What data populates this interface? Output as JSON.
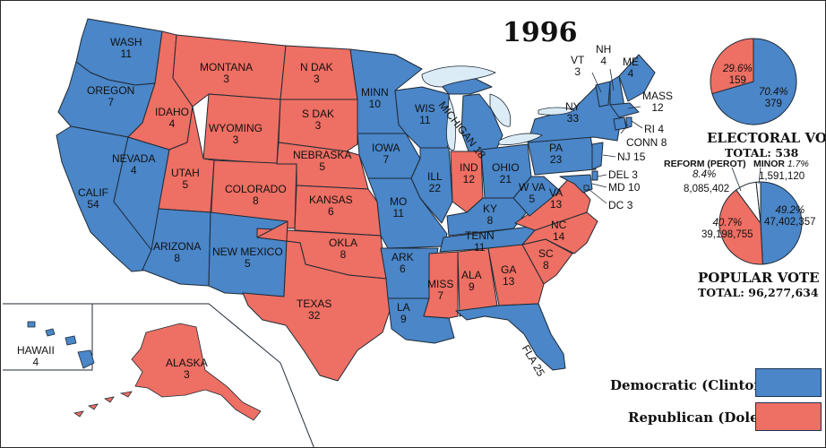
{
  "title": "1996",
  "colors": {
    "democratic": "#4a86c8",
    "republican": "#ee6f63",
    "lakes": "#dcecf7",
    "border": "#1f2a36",
    "reform": "#ffffff",
    "minor": "#ffffff"
  },
  "states": {
    "WA": {
      "name": "WASH",
      "ev": "11",
      "party": "D"
    },
    "OR": {
      "name": "OREGON",
      "ev": "7",
      "party": "D"
    },
    "CA": {
      "name": "CALIF",
      "ev": "54",
      "party": "D"
    },
    "NV": {
      "name": "NEVADA",
      "ev": "4",
      "party": "D"
    },
    "ID": {
      "name": "IDAHO",
      "ev": "4",
      "party": "R"
    },
    "MT": {
      "name": "MONTANA",
      "ev": "3",
      "party": "R"
    },
    "WY": {
      "name": "WYOMING",
      "ev": "3",
      "party": "R"
    },
    "UT": {
      "name": "UTAH",
      "ev": "5",
      "party": "R"
    },
    "CO": {
      "name": "COLORADO",
      "ev": "8",
      "party": "R"
    },
    "AZ": {
      "name": "ARIZONA",
      "ev": "8",
      "party": "D"
    },
    "NM": {
      "name": "NEW MEXICO",
      "ev": "5",
      "party": "D"
    },
    "ND": {
      "name": "N DAK",
      "ev": "3",
      "party": "R"
    },
    "SD": {
      "name": "S DAK",
      "ev": "3",
      "party": "R"
    },
    "NE": {
      "name": "NEBRASKA",
      "ev": "5",
      "party": "R"
    },
    "KS": {
      "name": "KANSAS",
      "ev": "6",
      "party": "R"
    },
    "OK": {
      "name": "OKLA",
      "ev": "8",
      "party": "R"
    },
    "TX": {
      "name": "TEXAS",
      "ev": "32",
      "party": "R"
    },
    "MN": {
      "name": "MINN",
      "ev": "10",
      "party": "D"
    },
    "IA": {
      "name": "IOWA",
      "ev": "7",
      "party": "D"
    },
    "MO": {
      "name": "MO",
      "ev": "11",
      "party": "D"
    },
    "AR": {
      "name": "ARK",
      "ev": "6",
      "party": "D"
    },
    "LA": {
      "name": "LA",
      "ev": "9",
      "party": "D"
    },
    "WI": {
      "name": "WIS",
      "ev": "11",
      "party": "D"
    },
    "IL": {
      "name": "ILL",
      "ev": "22",
      "party": "D"
    },
    "MI": {
      "name": "MICHIGAN",
      "ev": "18",
      "party": "D"
    },
    "IN": {
      "name": "IND",
      "ev": "12",
      "party": "R"
    },
    "OH": {
      "name": "OHIO",
      "ev": "21",
      "party": "D"
    },
    "KY": {
      "name": "KY",
      "ev": "8",
      "party": "D"
    },
    "TN": {
      "name": "TENN",
      "ev": "11",
      "party": "D"
    },
    "MS": {
      "name": "MISS",
      "ev": "7",
      "party": "R"
    },
    "AL": {
      "name": "ALA",
      "ev": "9",
      "party": "R"
    },
    "GA": {
      "name": "GA",
      "ev": "13",
      "party": "R"
    },
    "FL": {
      "name": "FLA",
      "ev": "25",
      "party": "D"
    },
    "SC": {
      "name": "SC",
      "ev": "8",
      "party": "R"
    },
    "NC": {
      "name": "NC",
      "ev": "14",
      "party": "R"
    },
    "VA": {
      "name": "VA",
      "ev": "13",
      "party": "R"
    },
    "WV": {
      "name": "W VA",
      "ev": "5",
      "party": "D"
    },
    "PA": {
      "name": "PA",
      "ev": "23",
      "party": "D"
    },
    "NY": {
      "name": "NY",
      "ev": "33",
      "party": "D"
    },
    "VT": {
      "name": "VT",
      "ev": "3",
      "party": "D"
    },
    "NH": {
      "name": "NH",
      "ev": "4",
      "party": "D"
    },
    "ME": {
      "name": "ME",
      "ev": "4",
      "party": "D"
    },
    "MA": {
      "name": "MASS",
      "ev": "12",
      "party": "D"
    },
    "RI": {
      "name": "RI",
      "ev": "4",
      "party": "D"
    },
    "CT": {
      "name": "CONN",
      "ev": "8",
      "party": "D"
    },
    "NJ": {
      "name": "NJ",
      "ev": "15",
      "party": "D"
    },
    "DE": {
      "name": "DEL",
      "ev": "3",
      "party": "D"
    },
    "MD": {
      "name": "MD",
      "ev": "10",
      "party": "D"
    },
    "DC": {
      "name": "DC",
      "ev": "3",
      "party": "D"
    },
    "HI": {
      "name": "HAWAII",
      "ev": "4",
      "party": "D"
    },
    "AK": {
      "name": "ALASKA",
      "ev": "3",
      "party": "R"
    }
  },
  "electoral_vote": {
    "heading": "ELECTORAL VOTE",
    "total_label": "TOTAL: 538",
    "dem_pct": "70.4%",
    "dem_votes": "379",
    "rep_pct": "29.6%",
    "rep_votes": "159",
    "shares": {
      "dem": 379,
      "rep": 159
    }
  },
  "popular_vote": {
    "heading": "POPULAR VOTE",
    "total_label": "TOTAL: 96,277,634",
    "dem_pct": "49.2%",
    "dem_votes": "47,402,357",
    "rep_pct": "40.7%",
    "rep_votes": "39,198,755",
    "reform_label": "REFORM (PEROT)",
    "reform_pct": "8.4%",
    "reform_votes": "8,085,402",
    "minor_label": "MINOR",
    "minor_pct": "1.7%",
    "minor_votes": "1,591,120",
    "shares": {
      "dem": 49.2,
      "rep": 40.7,
      "reform": 8.4,
      "minor": 1.7
    }
  },
  "legend": {
    "democratic": "Democratic (Clinton)",
    "republican": "Republican (Dole)"
  }
}
